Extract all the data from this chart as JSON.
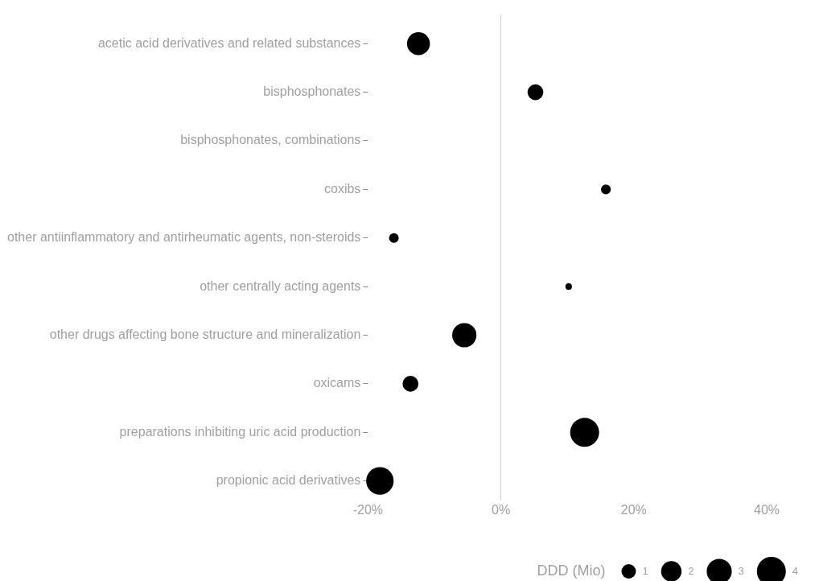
{
  "chart_data": {
    "type": "bubble",
    "xlabel": null,
    "legend_title": "DDD (Mio)",
    "categories": [
      "acetic acid derivatives and related substances",
      "bisphosphonates",
      "bisphosphonates, combinations",
      "coxibs",
      "other antiinflammatory and antirheumatic agents, non-steroids",
      "other centrally acting agents",
      "other drugs affecting bone structure and mineralization",
      "oxicams",
      "preparations inhibiting uric acid production",
      "propionic acid derivatives"
    ],
    "series": [
      {
        "color": "#000000",
        "values": [
          -12.4,
          5.2,
          null,
          15.8,
          -16.1,
          10.2,
          -5.5,
          -13.6,
          12.6,
          -18.2
        ],
        "sizes": [
          2.5,
          1.2,
          null,
          0.45,
          0.45,
          0.2,
          2.8,
          1.2,
          4,
          3.6
        ]
      }
    ],
    "orientation": "horizontal",
    "size_legend": [
      1,
      2,
      3,
      4
    ],
    "xlim": [
      -20,
      40
    ],
    "xticks": [
      {
        "value": -20,
        "label": "-20%"
      },
      {
        "value": 0,
        "label": "0%"
      },
      {
        "value": 20,
        "label": "20%"
      },
      {
        "value": 40,
        "label": "40%"
      }
    ],
    "ref_lines": [
      {
        "axis": "x",
        "value": 0,
        "color": "#cccccc"
      }
    ],
    "grid": false
  }
}
